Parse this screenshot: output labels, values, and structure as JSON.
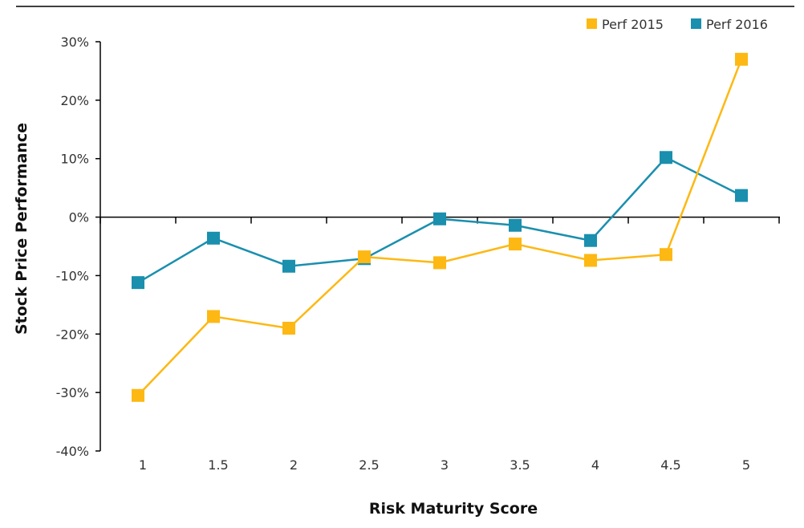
{
  "chart_data": {
    "type": "line",
    "title": "",
    "xlabel": "Risk Maturity Score",
    "ylabel": "Stock Price Performance",
    "x": [
      1,
      1.5,
      2,
      2.5,
      3,
      3.5,
      4,
      4.5,
      5
    ],
    "x_tick_labels": [
      "1",
      "1.5",
      "2",
      "2.5",
      "3",
      "3.5",
      "4",
      "4.5",
      "5"
    ],
    "y_ticks": [
      30,
      20,
      10,
      0,
      -10,
      -20,
      -30,
      -40
    ],
    "y_tick_labels": [
      "30%",
      "20%",
      "10%",
      "0%",
      "-10%",
      "-20%",
      "-30%",
      "-40%"
    ],
    "ylim": [
      -40,
      30
    ],
    "grid": false,
    "legend_position": "top-right",
    "series": [
      {
        "name": "Perf 2015",
        "color": "#FDB813",
        "values": [
          -30.5,
          -17,
          -19,
          -6.8,
          -7.8,
          -4.6,
          -7.4,
          -6.4,
          27
        ]
      },
      {
        "name": "Perf 2016",
        "color": "#1A8FAE",
        "values": [
          -11.2,
          -3.6,
          -8.4,
          -7.1,
          -0.3,
          -1.4,
          -4,
          10.2,
          3.7
        ]
      }
    ]
  }
}
